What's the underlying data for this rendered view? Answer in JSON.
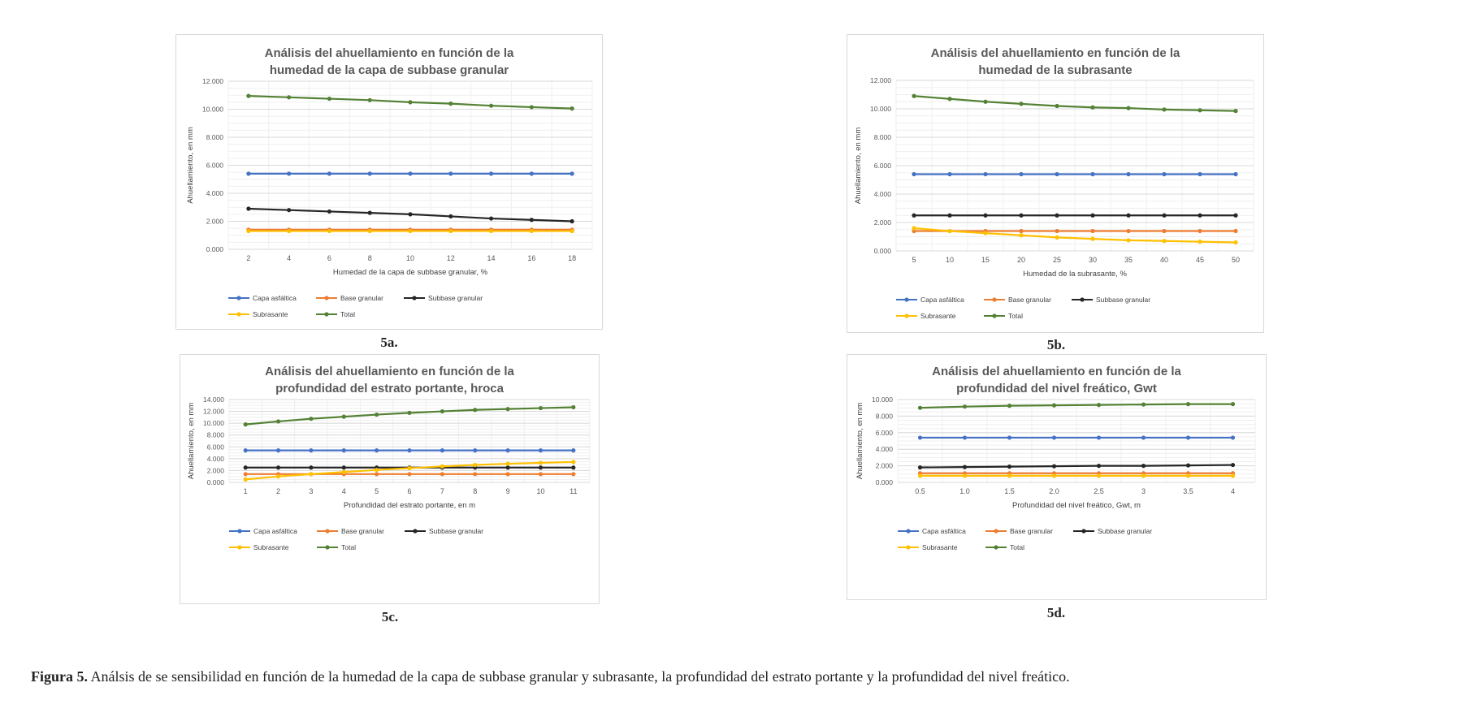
{
  "caption": {
    "label": "Figura 5.",
    "text": " Análsis de se sensibilidad en función de la humedad de la capa de subbase granular y subrasante, la profundidad del estrato portante y la profundidad del nivel freático."
  },
  "legend_labels": [
    "Capa asfáltica",
    "Base granular",
    "Subbase granular",
    "Subrasante",
    "Total"
  ],
  "series_colors": [
    "#4472c4",
    "#ed7d31",
    "#262626",
    "#ffc000",
    "#548235"
  ],
  "panels": [
    {
      "label": "5a.",
      "title_line1": "Análisis del ahuellamiento en función de la",
      "title_line2": "humedad de la capa de subbase granular"
    },
    {
      "label": "5b.",
      "title_line1": "Análisis del ahuellamiento en función de la",
      "title_line2": "humedad de la subrasante"
    },
    {
      "label": "5c.",
      "title_line1": "Análisis del ahuellamiento en función de la",
      "title_line2": "profundidad del estrato portante, hroca"
    },
    {
      "label": "5d.",
      "title_line1": "Análisis del ahuellamiento en función de la",
      "title_line2": "profundidad del nivel freático, Gwt"
    }
  ],
  "chart_data": [
    {
      "type": "line",
      "title": "Análisis del ahuellamiento en función de la humedad de la capa de subbase granular",
      "xlabel": "Humedad de la capa de subbase granular, %",
      "ylabel": "Ahuellamiento, en mm",
      "x": [
        "2",
        "4",
        "6",
        "8",
        "10",
        "12",
        "14",
        "16",
        "18"
      ],
      "ylim": [
        0,
        12
      ],
      "yticks": [
        "0.000",
        "2.000",
        "4.000",
        "6.000",
        "8.000",
        "10.000",
        "12.000"
      ],
      "grid": true,
      "legend": "bottom",
      "series": [
        {
          "name": "Capa asfáltica",
          "values": [
            5.4,
            5.4,
            5.4,
            5.4,
            5.4,
            5.4,
            5.4,
            5.4,
            5.4
          ]
        },
        {
          "name": "Base granular",
          "values": [
            1.4,
            1.4,
            1.4,
            1.4,
            1.4,
            1.4,
            1.4,
            1.4,
            1.4
          ]
        },
        {
          "name": "Subbase granular",
          "values": [
            2.9,
            2.8,
            2.7,
            2.6,
            2.5,
            2.35,
            2.2,
            2.1,
            2.0
          ]
        },
        {
          "name": "Subrasante",
          "values": [
            1.3,
            1.3,
            1.3,
            1.3,
            1.3,
            1.3,
            1.3,
            1.3,
            1.3
          ]
        },
        {
          "name": "Total",
          "values": [
            10.95,
            10.85,
            10.75,
            10.65,
            10.5,
            10.4,
            10.25,
            10.15,
            10.05
          ]
        }
      ]
    },
    {
      "type": "line",
      "title": "Análisis del ahuellamiento en función de la humedad de la subrasante",
      "xlabel": "Humedad de la subrasante, %",
      "ylabel": "Ahuellamiento, en mm",
      "x": [
        "5",
        "10",
        "15",
        "20",
        "25",
        "30",
        "35",
        "40",
        "45",
        "50"
      ],
      "ylim": [
        0,
        12
      ],
      "yticks": [
        "0.000",
        "2.000",
        "4.000",
        "6.000",
        "8.000",
        "10.000",
        "12.000"
      ],
      "grid": true,
      "legend": "bottom",
      "series": [
        {
          "name": "Capa asfáltica",
          "values": [
            5.4,
            5.4,
            5.4,
            5.4,
            5.4,
            5.4,
            5.4,
            5.4,
            5.4,
            5.4
          ]
        },
        {
          "name": "Base granular",
          "values": [
            1.4,
            1.4,
            1.4,
            1.4,
            1.4,
            1.4,
            1.4,
            1.4,
            1.4,
            1.4
          ]
        },
        {
          "name": "Subbase granular",
          "values": [
            2.5,
            2.5,
            2.5,
            2.5,
            2.5,
            2.5,
            2.5,
            2.5,
            2.5,
            2.5
          ]
        },
        {
          "name": "Subrasante",
          "values": [
            1.6,
            1.4,
            1.25,
            1.1,
            0.95,
            0.85,
            0.75,
            0.7,
            0.65,
            0.6
          ]
        },
        {
          "name": "Total",
          "values": [
            10.9,
            10.7,
            10.5,
            10.35,
            10.2,
            10.1,
            10.05,
            9.95,
            9.9,
            9.85
          ]
        }
      ]
    },
    {
      "type": "line",
      "title": "Análisis del ahuellamiento en función de la profundidad del estrato portante, hroca",
      "xlabel": "Profundidad del estrato portante, en m",
      "ylabel": "Ahuellamiento, en mm",
      "x": [
        "1",
        "2",
        "3",
        "4",
        "5",
        "6",
        "7",
        "8",
        "9",
        "10",
        "11"
      ],
      "ylim": [
        0,
        14
      ],
      "yticks": [
        "0.000",
        "2.000",
        "4.000",
        "6.000",
        "8.000",
        "10.000",
        "12.000",
        "14.000"
      ],
      "grid": true,
      "legend": "bottom",
      "series": [
        {
          "name": "Capa asfáltica",
          "values": [
            5.4,
            5.4,
            5.4,
            5.4,
            5.4,
            5.4,
            5.4,
            5.4,
            5.4,
            5.4,
            5.4
          ]
        },
        {
          "name": "Base granular",
          "values": [
            1.4,
            1.4,
            1.4,
            1.4,
            1.4,
            1.4,
            1.4,
            1.4,
            1.4,
            1.4,
            1.4
          ]
        },
        {
          "name": "Subbase granular",
          "values": [
            2.5,
            2.5,
            2.5,
            2.5,
            2.5,
            2.5,
            2.5,
            2.5,
            2.5,
            2.5,
            2.5
          ]
        },
        {
          "name": "Subrasante",
          "values": [
            0.5,
            1.0,
            1.4,
            1.75,
            2.1,
            2.4,
            2.7,
            2.95,
            3.15,
            3.3,
            3.45
          ]
        },
        {
          "name": "Total",
          "values": [
            9.8,
            10.3,
            10.75,
            11.1,
            11.45,
            11.75,
            12.0,
            12.25,
            12.4,
            12.55,
            12.7
          ]
        }
      ]
    },
    {
      "type": "line",
      "title": "Análisis del ahuellamiento en función de la profundidad del nivel freático, Gwt",
      "xlabel": "Profundidad del nivel freático, Gwt, m",
      "ylabel": "Ahuellamiento, en mm",
      "x": [
        "0.5",
        "1.0",
        "1.5",
        "2.0",
        "2.5",
        "3",
        "3.5",
        "4"
      ],
      "ylim": [
        0,
        10
      ],
      "yticks": [
        "0.000",
        "2.000",
        "4.000",
        "6.000",
        "8.000",
        "10.000"
      ],
      "grid": true,
      "legend": "bottom",
      "series": [
        {
          "name": "Capa asfáltica",
          "values": [
            5.4,
            5.4,
            5.4,
            5.4,
            5.4,
            5.4,
            5.4,
            5.4
          ]
        },
        {
          "name": "Base granular",
          "values": [
            1.1,
            1.1,
            1.1,
            1.1,
            1.1,
            1.1,
            1.1,
            1.1
          ]
        },
        {
          "name": "Subbase granular",
          "values": [
            1.8,
            1.85,
            1.9,
            1.95,
            2.0,
            2.0,
            2.05,
            2.1
          ]
        },
        {
          "name": "Subrasante",
          "values": [
            0.8,
            0.8,
            0.8,
            0.8,
            0.8,
            0.8,
            0.8,
            0.8
          ]
        },
        {
          "name": "Total",
          "values": [
            9.0,
            9.15,
            9.25,
            9.3,
            9.35,
            9.4,
            9.45,
            9.45
          ]
        }
      ]
    }
  ]
}
